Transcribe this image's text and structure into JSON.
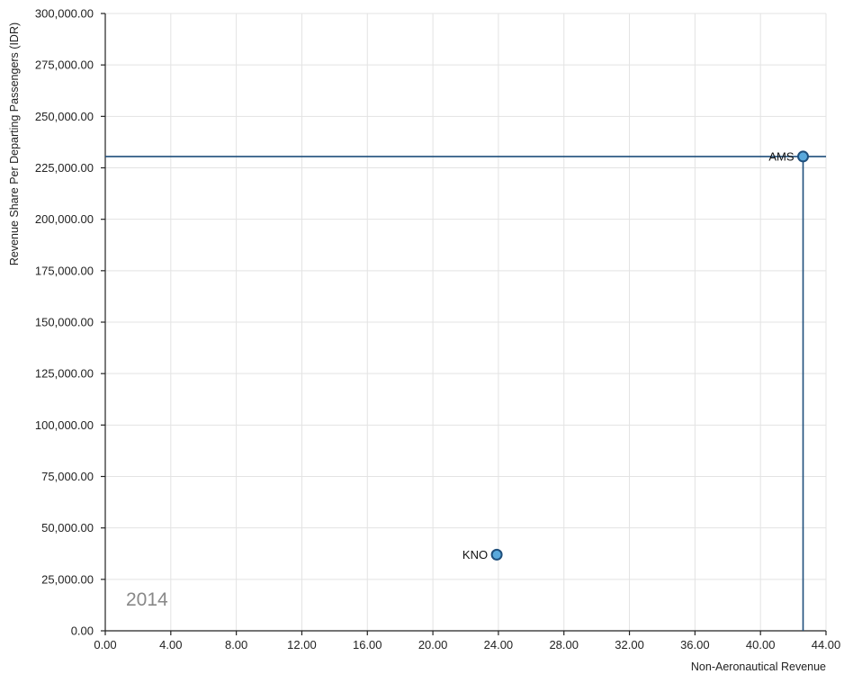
{
  "chart_data": {
    "type": "scatter",
    "title": "",
    "xlabel": "Non-Aeronautical Revenue",
    "ylabel": "Revenue Share Per Departing Passengers (IDR)",
    "xlim": [
      0,
      44
    ],
    "ylim": [
      0,
      300000
    ],
    "x_ticks": [
      "0.00",
      "4.00",
      "8.00",
      "12.00",
      "16.00",
      "20.00",
      "24.00",
      "28.00",
      "32.00",
      "36.00",
      "40.00",
      "44.00"
    ],
    "y_ticks": [
      "0.00",
      "25,000.00",
      "50,000.00",
      "75,000.00",
      "100,000.00",
      "125,000.00",
      "150,000.00",
      "175,000.00",
      "200,000.00",
      "225,000.00",
      "250,000.00",
      "275,000.00",
      "300,000.00"
    ],
    "grid": true,
    "year_label": "2014",
    "points": [
      {
        "label": "KNO",
        "x": 23.9,
        "y": 37000
      },
      {
        "label": "AMS",
        "x": 42.6,
        "y": 230500
      }
    ],
    "crosshair": {
      "x": 42.6,
      "y": 230500
    },
    "colors": {
      "point_fill": "#5aa9dc",
      "point_stroke": "#1f4f7c",
      "crosshair": "#1f4f7c"
    }
  }
}
